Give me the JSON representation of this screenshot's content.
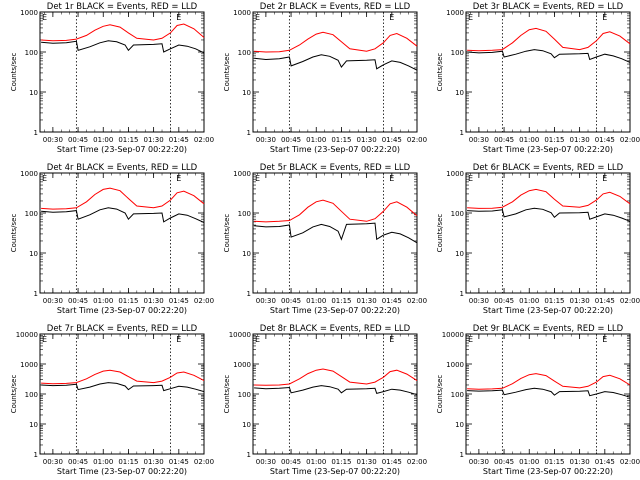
{
  "xtick_labels": [
    "00:30",
    "00:45",
    "01:00",
    "01:15",
    "01:30",
    "01:45",
    "02:00"
  ],
  "xlabel": "Start Time (23-Sep-07 00:22:20)",
  "ylabel": "Counts/sec",
  "marker_label": "E",
  "colors": {
    "events": "#000000",
    "lld": "#ff0000"
  },
  "chart_data": [
    {
      "type": "line",
      "title": "Det 1r BLACK = Events, RED = LLD",
      "ylim": [
        1,
        1000
      ],
      "yticks": [
        1,
        10,
        100,
        1000
      ],
      "ytick_labels": [
        "1",
        "10",
        "100",
        "1000"
      ],
      "xlim": [
        "00:22:20",
        "02:00"
      ],
      "vlines": [
        "00:44",
        "01:40"
      ],
      "markers": [
        "00:25",
        "01:45"
      ],
      "series": [
        {
          "key": "events",
          "x": [
            "00:23",
            "00:30",
            "00:38",
            "00:44",
            "00:45",
            "00:52",
            "00:58",
            "01:03",
            "01:08",
            "01:13",
            "01:15",
            "01:18",
            "01:30",
            "01:35",
            "01:36",
            "01:40",
            "01:45",
            "01:50",
            "01:55",
            "02:00"
          ],
          "values": [
            175,
            165,
            170,
            185,
            110,
            135,
            170,
            190,
            180,
            150,
            110,
            150,
            155,
            160,
            100,
            120,
            150,
            140,
            120,
            95
          ]
        },
        {
          "key": "lld",
          "x": [
            "00:23",
            "00:30",
            "00:38",
            "00:44",
            "00:50",
            "00:55",
            "01:00",
            "01:04",
            "01:10",
            "01:15",
            "01:20",
            "01:30",
            "01:35",
            "01:40",
            "01:44",
            "01:48",
            "01:54",
            "02:00"
          ],
          "values": [
            200,
            190,
            195,
            210,
            260,
            350,
            440,
            480,
            420,
            300,
            220,
            200,
            220,
            300,
            460,
            500,
            380,
            230
          ]
        }
      ]
    },
    {
      "type": "line",
      "title": "Det 2r BLACK = Events, RED = LLD",
      "ylim": [
        1,
        1000
      ],
      "yticks": [
        1,
        10,
        100,
        1000
      ],
      "ytick_labels": [
        "1",
        "10",
        "100",
        "1000"
      ],
      "xlim": [
        "00:22:20",
        "02:00"
      ],
      "vlines": [
        "00:44",
        "01:40"
      ],
      "markers": [
        "00:25",
        "01:45"
      ],
      "series": [
        {
          "key": "events",
          "x": [
            "00:23",
            "00:30",
            "00:38",
            "00:44",
            "00:45",
            "00:52",
            "00:58",
            "01:03",
            "01:08",
            "01:13",
            "01:15",
            "01:18",
            "01:30",
            "01:35",
            "01:36",
            "01:40",
            "01:45",
            "01:50",
            "01:55",
            "02:00"
          ],
          "values": [
            70,
            65,
            68,
            75,
            45,
            58,
            75,
            85,
            78,
            62,
            42,
            60,
            62,
            64,
            38,
            48,
            60,
            55,
            45,
            35
          ]
        },
        {
          "key": "lld",
          "x": [
            "00:23",
            "00:30",
            "00:38",
            "00:44",
            "00:50",
            "00:55",
            "01:00",
            "01:04",
            "01:10",
            "01:15",
            "01:20",
            "01:30",
            "01:35",
            "01:40",
            "01:44",
            "01:48",
            "01:54",
            "02:00"
          ],
          "values": [
            105,
            100,
            102,
            110,
            150,
            210,
            280,
            310,
            270,
            180,
            120,
            105,
            120,
            170,
            260,
            290,
            220,
            140
          ]
        }
      ]
    },
    {
      "type": "line",
      "title": "Det 3r BLACK = Events, RED = LLD",
      "ylim": [
        1,
        1000
      ],
      "yticks": [
        1,
        10,
        100,
        1000
      ],
      "ytick_labels": [
        "1",
        "10",
        "100",
        "1000"
      ],
      "xlim": [
        "00:22:20",
        "02:00"
      ],
      "vlines": [
        "00:44",
        "01:40"
      ],
      "markers": [
        "00:25",
        "01:45"
      ],
      "series": [
        {
          "key": "events",
          "x": [
            "00:23",
            "00:30",
            "00:38",
            "00:44",
            "00:45",
            "00:52",
            "00:58",
            "01:03",
            "01:08",
            "01:13",
            "01:15",
            "01:18",
            "01:30",
            "01:35",
            "01:36",
            "01:40",
            "01:45",
            "01:50",
            "01:55",
            "02:00"
          ],
          "values": [
            100,
            95,
            98,
            105,
            75,
            88,
            105,
            115,
            108,
            90,
            72,
            88,
            90,
            92,
            65,
            75,
            88,
            80,
            68,
            55
          ]
        },
        {
          "key": "lld",
          "x": [
            "00:23",
            "00:30",
            "00:38",
            "00:44",
            "00:50",
            "00:55",
            "01:00",
            "01:04",
            "01:10",
            "01:15",
            "01:20",
            "01:30",
            "01:35",
            "01:40",
            "01:44",
            "01:48",
            "01:54",
            "02:00"
          ],
          "values": [
            110,
            108,
            110,
            115,
            170,
            260,
            360,
            390,
            330,
            210,
            130,
            115,
            130,
            190,
            290,
            320,
            250,
            160
          ]
        }
      ]
    },
    {
      "type": "line",
      "title": "Det 4r BLACK = Events, RED = LLD",
      "ylim": [
        1,
        1000
      ],
      "yticks": [
        1,
        10,
        100,
        1000
      ],
      "ytick_labels": [
        "1",
        "10",
        "100",
        "1000"
      ],
      "xlim": [
        "00:22:20",
        "02:00"
      ],
      "vlines": [
        "00:44",
        "01:40"
      ],
      "markers": [
        "00:25",
        "01:45"
      ],
      "series": [
        {
          "key": "events",
          "x": [
            "00:23",
            "00:30",
            "00:38",
            "00:44",
            "00:45",
            "00:52",
            "00:58",
            "01:03",
            "01:08",
            "01:13",
            "01:15",
            "01:18",
            "01:30",
            "01:35",
            "01:36",
            "01:40",
            "01:45",
            "01:50",
            "01:55",
            "02:00"
          ],
          "values": [
            110,
            105,
            108,
            115,
            70,
            90,
            120,
            135,
            125,
            100,
            70,
            95,
            98,
            100,
            60,
            75,
            95,
            88,
            72,
            58
          ]
        },
        {
          "key": "lld",
          "x": [
            "00:23",
            "00:30",
            "00:38",
            "00:44",
            "00:50",
            "00:55",
            "01:00",
            "01:04",
            "01:10",
            "01:15",
            "01:20",
            "01:30",
            "01:35",
            "01:40",
            "01:44",
            "01:48",
            "01:54",
            "02:00"
          ],
          "values": [
            130,
            125,
            128,
            135,
            190,
            290,
            390,
            420,
            360,
            230,
            150,
            135,
            150,
            210,
            320,
            350,
            270,
            170
          ]
        }
      ]
    },
    {
      "type": "line",
      "title": "Det 5r BLACK = Events, RED = LLD",
      "ylim": [
        1,
        1000
      ],
      "yticks": [
        1,
        10,
        100,
        1000
      ],
      "ytick_labels": [
        "1",
        "10",
        "100",
        "1000"
      ],
      "xlim": [
        "00:22:20",
        "02:00"
      ],
      "vlines": [
        "00:44",
        "01:40"
      ],
      "markers": [
        "00:25",
        "01:45"
      ],
      "series": [
        {
          "key": "events",
          "x": [
            "00:23",
            "00:30",
            "00:38",
            "00:44",
            "00:45",
            "00:52",
            "00:58",
            "01:03",
            "01:08",
            "01:13",
            "01:15",
            "01:18",
            "01:30",
            "01:35",
            "01:36",
            "01:40",
            "01:45",
            "01:50",
            "01:55",
            "02:00"
          ],
          "values": [
            48,
            45,
            46,
            50,
            25,
            32,
            45,
            52,
            46,
            35,
            22,
            52,
            54,
            56,
            22,
            28,
            33,
            30,
            24,
            18
          ]
        },
        {
          "key": "lld",
          "x": [
            "00:23",
            "00:30",
            "00:38",
            "00:44",
            "00:50",
            "00:55",
            "01:00",
            "01:04",
            "01:10",
            "01:15",
            "01:20",
            "01:30",
            "01:35",
            "01:40",
            "01:44",
            "01:48",
            "01:54",
            "02:00"
          ],
          "values": [
            62,
            60,
            62,
            65,
            90,
            140,
            190,
            210,
            175,
            110,
            70,
            62,
            72,
            110,
            170,
            190,
            140,
            85
          ]
        }
      ]
    },
    {
      "type": "line",
      "title": "Det 6r BLACK = Events, RED = LLD",
      "ylim": [
        1,
        1000
      ],
      "yticks": [
        1,
        10,
        100,
        1000
      ],
      "ytick_labels": [
        "1",
        "10",
        "100",
        "1000"
      ],
      "xlim": [
        "00:22:20",
        "02:00"
      ],
      "vlines": [
        "00:44",
        "01:40"
      ],
      "markers": [
        "00:25",
        "01:45"
      ],
      "series": [
        {
          "key": "events",
          "x": [
            "00:23",
            "00:30",
            "00:38",
            "00:44",
            "00:45",
            "00:52",
            "00:58",
            "01:03",
            "01:08",
            "01:13",
            "01:15",
            "01:18",
            "01:30",
            "01:35",
            "01:36",
            "01:40",
            "01:45",
            "01:50",
            "01:55",
            "02:00"
          ],
          "values": [
            115,
            110,
            112,
            120,
            80,
            95,
            120,
            132,
            124,
            102,
            78,
            100,
            102,
            104,
            70,
            80,
            95,
            88,
            75,
            62
          ]
        },
        {
          "key": "lld",
          "x": [
            "00:23",
            "00:30",
            "00:38",
            "00:44",
            "00:50",
            "00:55",
            "01:00",
            "01:04",
            "01:10",
            "01:15",
            "01:20",
            "01:30",
            "01:35",
            "01:40",
            "01:44",
            "01:48",
            "01:54",
            "02:00"
          ],
          "values": [
            135,
            130,
            132,
            140,
            190,
            280,
            360,
            390,
            340,
            220,
            150,
            140,
            155,
            210,
            300,
            330,
            260,
            170
          ]
        }
      ]
    },
    {
      "type": "line",
      "title": "Det 7r BLACK = Events, RED = LLD",
      "ylim": [
        1,
        10000
      ],
      "yticks": [
        1,
        10,
        100,
        1000,
        10000
      ],
      "ytick_labels": [
        "1",
        "10",
        "100",
        "1000",
        "10000"
      ],
      "xlim": [
        "00:22:20",
        "02:00"
      ],
      "vlines": [
        "00:44",
        "01:40"
      ],
      "markers": [
        "00:25",
        "01:45"
      ],
      "series": [
        {
          "key": "events",
          "x": [
            "00:23",
            "00:30",
            "00:38",
            "00:44",
            "00:45",
            "00:52",
            "00:58",
            "01:03",
            "01:08",
            "01:13",
            "01:15",
            "01:18",
            "01:30",
            "01:35",
            "01:36",
            "01:40",
            "01:45",
            "01:50",
            "01:55",
            "02:00"
          ],
          "values": [
            200,
            190,
            195,
            210,
            140,
            170,
            215,
            240,
            225,
            185,
            140,
            185,
            190,
            195,
            130,
            150,
            180,
            170,
            145,
            120
          ]
        },
        {
          "key": "lld",
          "x": [
            "00:23",
            "00:30",
            "00:38",
            "00:44",
            "00:50",
            "00:55",
            "01:00",
            "01:04",
            "01:10",
            "01:15",
            "01:20",
            "01:30",
            "01:35",
            "01:40",
            "01:44",
            "01:48",
            "01:54",
            "02:00"
          ],
          "values": [
            230,
            220,
            225,
            240,
            320,
            450,
            580,
            620,
            540,
            380,
            270,
            240,
            270,
            360,
            500,
            540,
            420,
            280
          ]
        }
      ]
    },
    {
      "type": "line",
      "title": "Det 8r BLACK = Events, RED = LLD",
      "ylim": [
        1,
        10000
      ],
      "yticks": [
        1,
        10,
        100,
        1000,
        10000
      ],
      "ytick_labels": [
        "1",
        "10",
        "100",
        "1000",
        "10000"
      ],
      "xlim": [
        "00:22:20",
        "02:00"
      ],
      "vlines": [
        "00:44",
        "01:40"
      ],
      "markers": [
        "00:25",
        "01:45"
      ],
      "series": [
        {
          "key": "events",
          "x": [
            "00:23",
            "00:30",
            "00:38",
            "00:44",
            "00:45",
            "00:52",
            "00:58",
            "01:03",
            "01:08",
            "01:13",
            "01:15",
            "01:18",
            "01:30",
            "01:35",
            "01:36",
            "01:40",
            "01:45",
            "01:50",
            "01:55",
            "02:00"
          ],
          "values": [
            160,
            150,
            155,
            165,
            110,
            135,
            170,
            190,
            175,
            145,
            110,
            145,
            150,
            155,
            105,
            120,
            145,
            135,
            115,
            95
          ]
        },
        {
          "key": "lld",
          "x": [
            "00:23",
            "00:30",
            "00:38",
            "00:44",
            "00:50",
            "00:55",
            "01:00",
            "01:04",
            "01:10",
            "01:15",
            "01:20",
            "01:30",
            "01:35",
            "01:40",
            "01:44",
            "01:48",
            "01:54",
            "02:00"
          ],
          "values": [
            200,
            195,
            200,
            215,
            320,
            480,
            620,
            680,
            580,
            380,
            250,
            215,
            250,
            360,
            560,
            620,
            460,
            280
          ]
        }
      ]
    },
    {
      "type": "line",
      "title": "Det 9r BLACK = Events, RED = LLD",
      "ylim": [
        1,
        10000
      ],
      "yticks": [
        1,
        10,
        100,
        1000,
        10000
      ],
      "ytick_labels": [
        "1",
        "10",
        "100",
        "1000",
        "10000"
      ],
      "xlim": [
        "00:22:20",
        "02:00"
      ],
      "vlines": [
        "00:44",
        "01:40"
      ],
      "markers": [
        "00:25",
        "01:45"
      ],
      "series": [
        {
          "key": "events",
          "x": [
            "00:23",
            "00:30",
            "00:38",
            "00:44",
            "00:45",
            "00:52",
            "00:58",
            "01:03",
            "01:08",
            "01:13",
            "01:15",
            "01:18",
            "01:30",
            "01:35",
            "01:36",
            "01:40",
            "01:45",
            "01:50",
            "01:55",
            "02:00"
          ],
          "values": [
            130,
            125,
            128,
            135,
            95,
            115,
            140,
            155,
            145,
            120,
            92,
            120,
            124,
            128,
            88,
            100,
            120,
            112,
            95,
            78
          ]
        },
        {
          "key": "lld",
          "x": [
            "00:23",
            "00:30",
            "00:38",
            "00:44",
            "00:50",
            "00:55",
            "01:00",
            "01:04",
            "01:10",
            "01:15",
            "01:20",
            "01:30",
            "01:35",
            "01:40",
            "01:44",
            "01:48",
            "01:54",
            "02:00"
          ],
          "values": [
            150,
            145,
            148,
            155,
            220,
            330,
            440,
            480,
            410,
            270,
            180,
            160,
            180,
            250,
            380,
            420,
            320,
            200
          ]
        }
      ]
    }
  ]
}
